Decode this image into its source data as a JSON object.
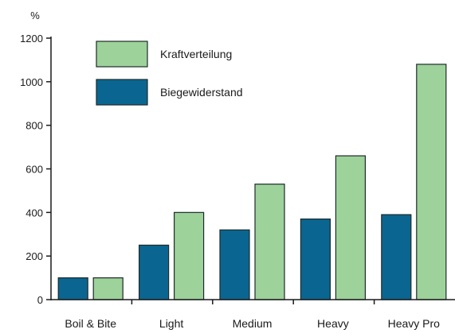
{
  "chart_data": {
    "type": "bar",
    "ylabel": "%",
    "ylim": [
      0,
      1200
    ],
    "yticks": [
      0,
      200,
      400,
      600,
      800,
      1000,
      1200
    ],
    "grid": false,
    "legend_position": "top-left",
    "categories": [
      "Boil & Bite",
      "Light",
      "Medium",
      "Heavy",
      "Heavy Pro"
    ],
    "series": [
      {
        "name": "Biegewiderstand",
        "color": "#0a6690",
        "values": [
          100,
          250,
          320,
          370,
          390
        ]
      },
      {
        "name": "Kraftverteilung",
        "color": "#9dd29b",
        "values": [
          100,
          400,
          530,
          660,
          1080
        ]
      }
    ],
    "legend_order": [
      1,
      0
    ]
  }
}
